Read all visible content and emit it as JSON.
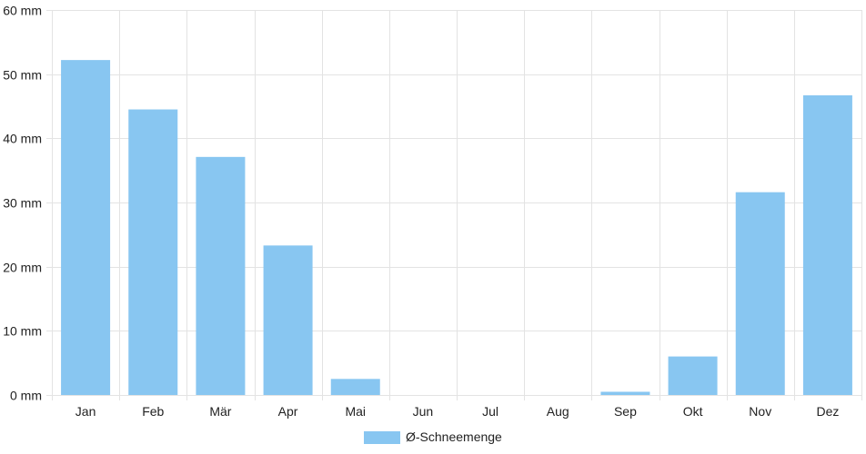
{
  "chart_data": {
    "type": "bar",
    "categories": [
      "Jan",
      "Feb",
      "Mär",
      "Apr",
      "Mai",
      "Jun",
      "Jul",
      "Aug",
      "Sep",
      "Okt",
      "Nov",
      "Dez"
    ],
    "series": [
      {
        "name": "Ø-Schneemenge",
        "values": [
          52.2,
          44.5,
          37.1,
          23.3,
          2.5,
          0,
          0,
          0,
          0.5,
          6.0,
          31.6,
          46.7
        ],
        "color": "#88c6f1"
      }
    ],
    "y_ticks": [
      "0 mm",
      "10 mm",
      "20 mm",
      "30 mm",
      "40 mm",
      "50 mm",
      "60 mm"
    ],
    "ylim": [
      0,
      60
    ],
    "grid": true,
    "legend_position": "bottom-center"
  }
}
